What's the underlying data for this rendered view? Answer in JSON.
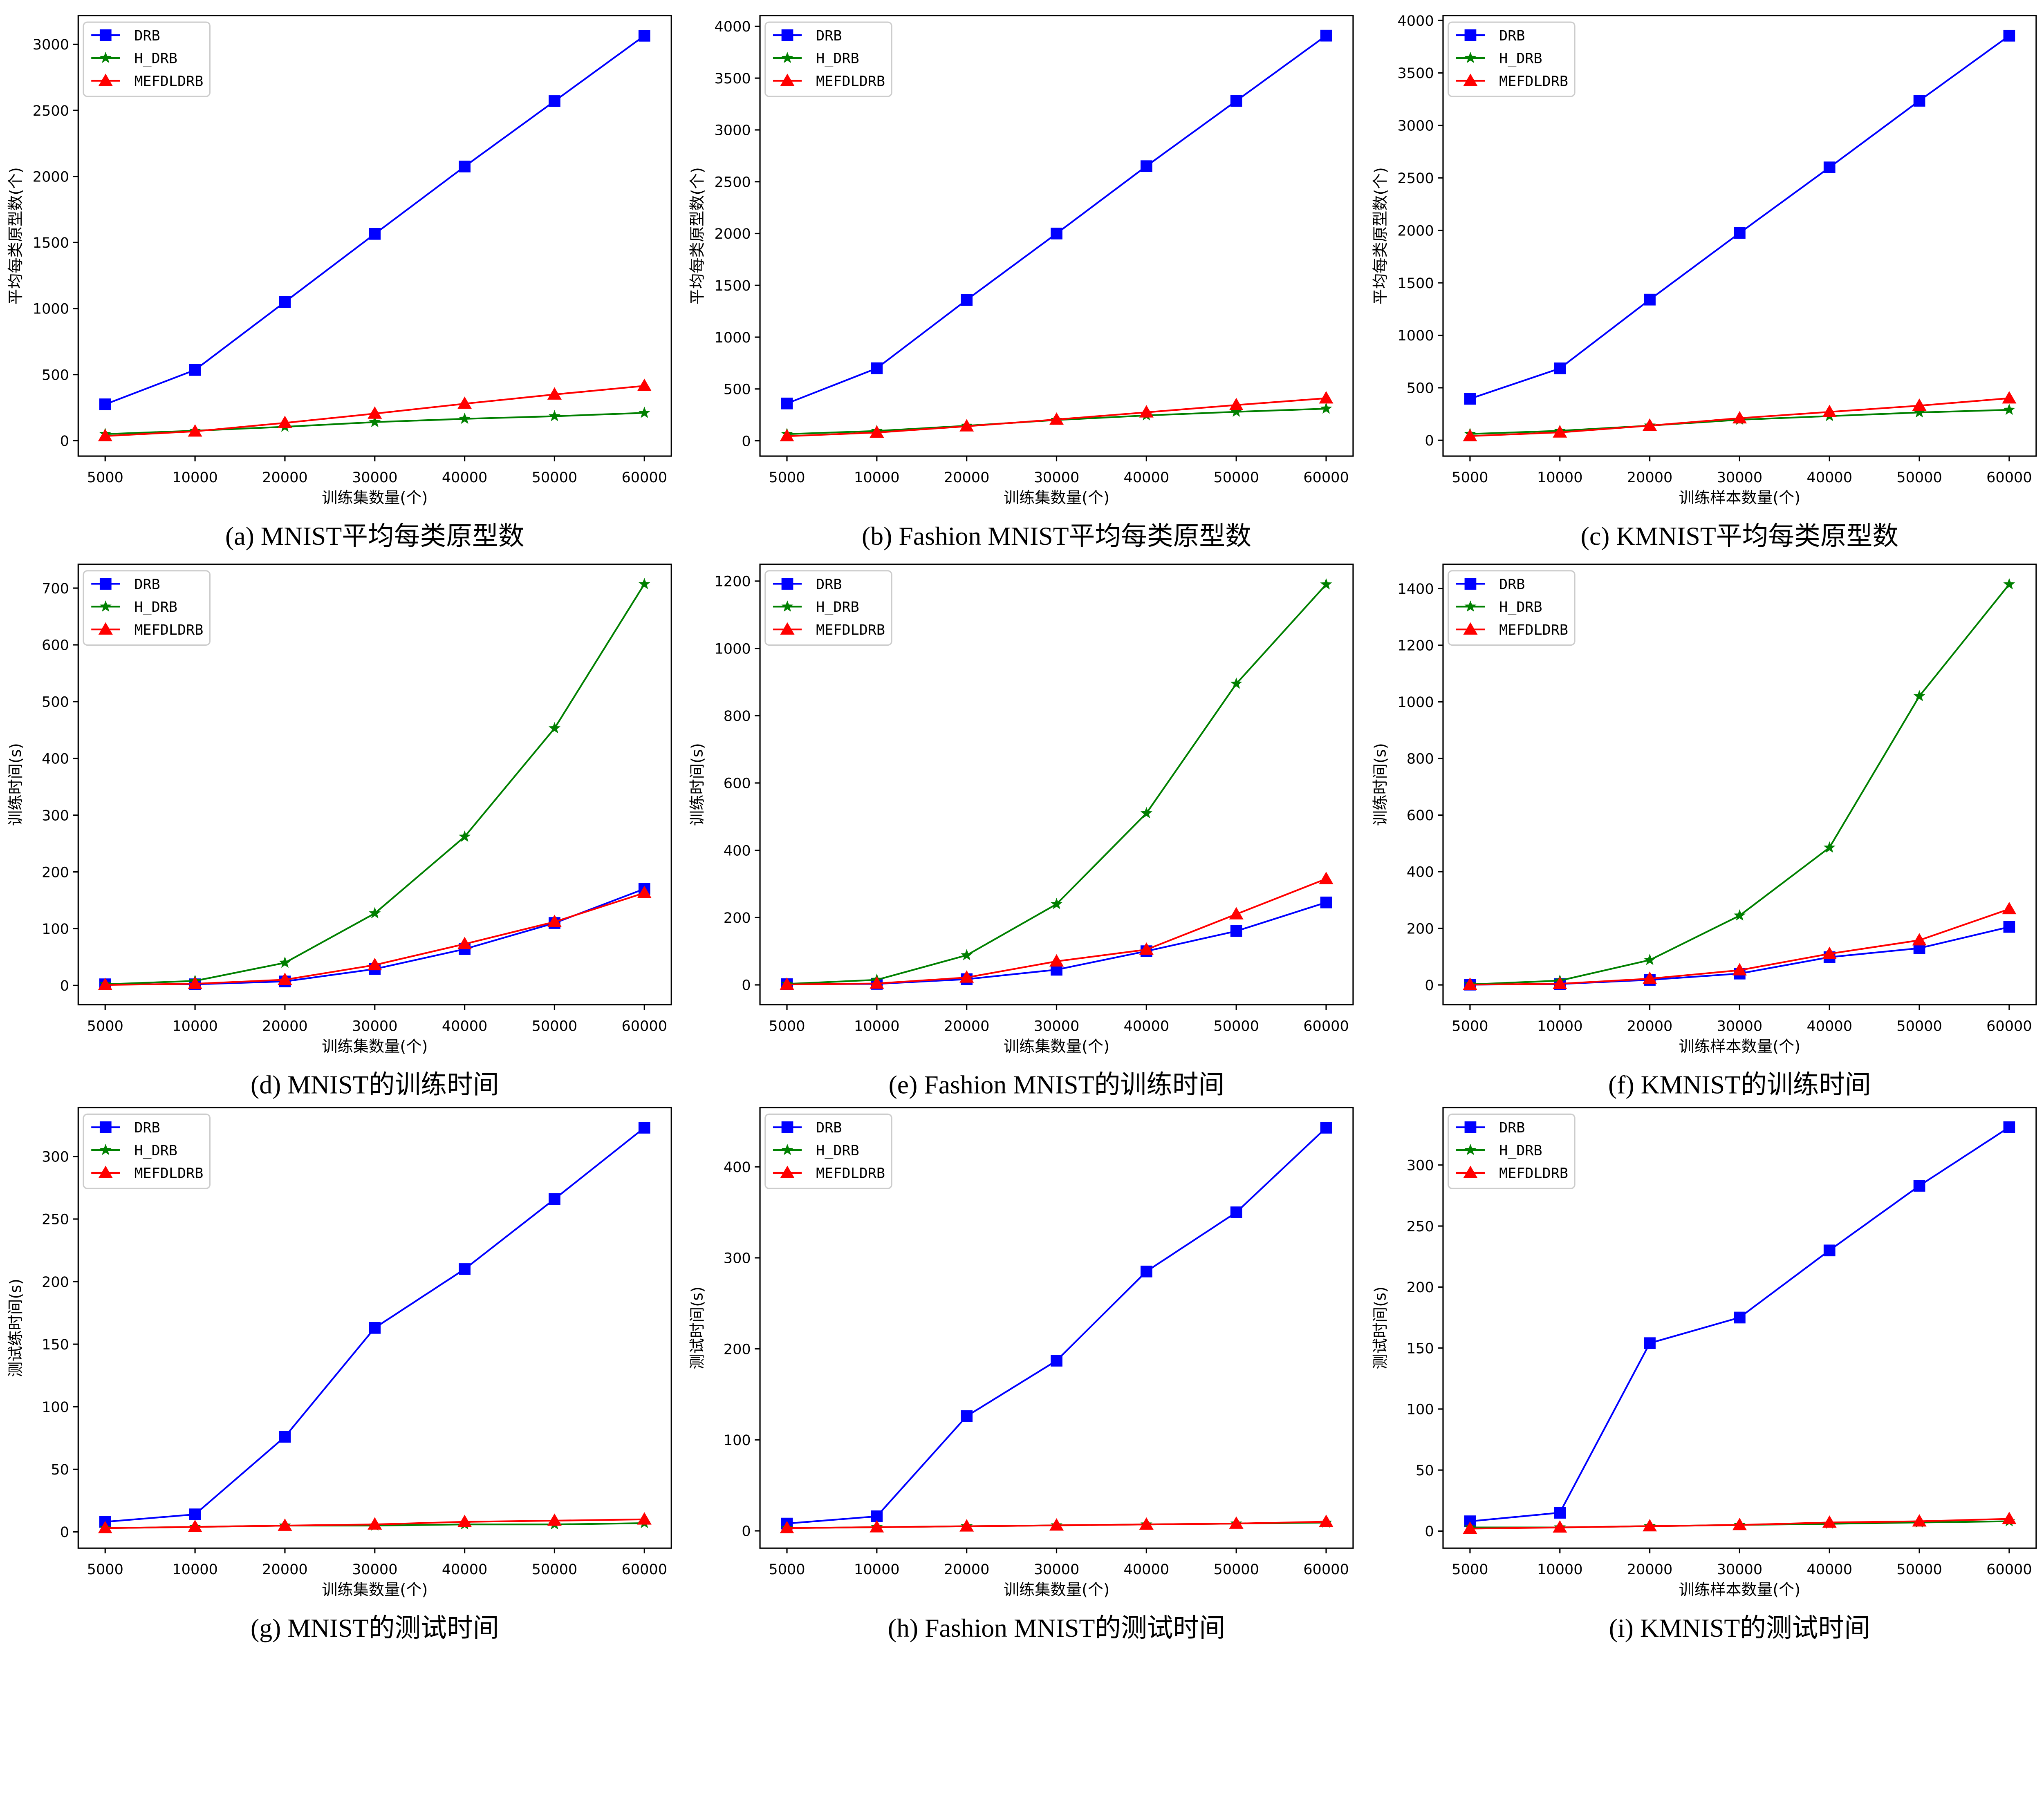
{
  "series_styles": [
    {
      "name": "DRB",
      "color": "#0000ff",
      "marker": "square"
    },
    {
      "name": "H_DRB",
      "color": "#008000",
      "marker": "star"
    },
    {
      "name": "MEFDLDRB",
      "color": "#ff0000",
      "marker": "triangle"
    }
  ],
  "chart_data": [
    {
      "type": "line",
      "caption": "(a) MNIST平均每类原型数",
      "xlabel": "训练集数量(个)",
      "ylabel": "平均每类原型数(个)",
      "categories": [
        "5000",
        "10000",
        "20000",
        "30000",
        "40000",
        "50000",
        "60000"
      ],
      "yticks": [
        0,
        500,
        1000,
        1500,
        2000,
        2500,
        3000
      ],
      "ylim": [
        -117,
        3217
      ],
      "legend": "top-left",
      "grid": false,
      "series": [
        {
          "name": "DRB",
          "values": [
            275,
            535,
            1050,
            1565,
            2075,
            2570,
            3065
          ]
        },
        {
          "name": "H_DRB",
          "values": [
            50,
            75,
            105,
            140,
            165,
            185,
            210
          ]
        },
        {
          "name": "MEFDLDRB",
          "values": [
            35,
            70,
            135,
            205,
            280,
            350,
            415
          ]
        }
      ]
    },
    {
      "type": "line",
      "caption": "(b) Fashion MNIST平均每类原型数",
      "xlabel": "训练集数量(个)",
      "ylabel": "平均每类原型数(个)",
      "categories": [
        "5000",
        "10000",
        "20000",
        "30000",
        "40000",
        "50000",
        "60000"
      ],
      "yticks": [
        0,
        500,
        1000,
        1500,
        2000,
        2500,
        3000,
        3500,
        4000
      ],
      "ylim": [
        -148,
        4103
      ],
      "legend": "top-left",
      "grid": false,
      "series": [
        {
          "name": "DRB",
          "values": [
            360,
            700,
            1360,
            2000,
            2650,
            3280,
            3910
          ]
        },
        {
          "name": "H_DRB",
          "values": [
            65,
            95,
            145,
            200,
            245,
            280,
            310
          ]
        },
        {
          "name": "MEFDLDRB",
          "values": [
            45,
            80,
            140,
            205,
            275,
            345,
            410
          ]
        }
      ]
    },
    {
      "type": "line",
      "caption": "(c) KMNIST平均每类原型数",
      "xlabel": "训练样本数量(个)",
      "ylabel": "平均每类原型数(个)",
      "categories": [
        "5000",
        "10000",
        "20000",
        "30000",
        "40000",
        "50000",
        "60000"
      ],
      "yticks": [
        0,
        500,
        1000,
        1500,
        2000,
        2500,
        3000,
        3500,
        4000
      ],
      "ylim": [
        -151,
        4046
      ],
      "legend": "top-left",
      "grid": false,
      "series": [
        {
          "name": "DRB",
          "values": [
            395,
            685,
            1340,
            1975,
            2600,
            3235,
            3855
          ]
        },
        {
          "name": "H_DRB",
          "values": [
            60,
            90,
            140,
            195,
            230,
            265,
            290
          ]
        },
        {
          "name": "MEFDLDRB",
          "values": [
            40,
            75,
            140,
            210,
            270,
            330,
            400
          ]
        }
      ]
    },
    {
      "type": "line",
      "caption": "(d) MNIST的训练时间",
      "xlabel": "训练集数量(个)",
      "ylabel": "训练时间(s)",
      "categories": [
        "5000",
        "10000",
        "20000",
        "30000",
        "40000",
        "50000",
        "60000"
      ],
      "yticks": [
        0,
        100,
        200,
        300,
        400,
        500,
        600,
        700
      ],
      "ylim": [
        -34,
        742
      ],
      "legend": "top-left",
      "grid": false,
      "series": [
        {
          "name": "DRB",
          "values": [
            2,
            2,
            7,
            29,
            64,
            110,
            170
          ]
        },
        {
          "name": "H_DRB",
          "values": [
            2,
            8,
            40,
            127,
            262,
            453,
            707
          ]
        },
        {
          "name": "MEFDLDRB",
          "values": [
            1,
            3,
            10,
            36,
            73,
            112,
            163
          ]
        }
      ]
    },
    {
      "type": "line",
      "caption": "(e) Fashion MNIST的训练时间",
      "xlabel": "训练集数量(个)",
      "ylabel": "训练时间(s)",
      "categories": [
        "5000",
        "10000",
        "20000",
        "30000",
        "40000",
        "50000",
        "60000"
      ],
      "yticks": [
        0,
        200,
        400,
        600,
        800,
        1000,
        1200
      ],
      "ylim": [
        -59,
        1250
      ],
      "legend": "top-left",
      "grid": false,
      "series": [
        {
          "name": "DRB",
          "values": [
            2,
            3,
            17,
            45,
            100,
            160,
            245
          ]
        },
        {
          "name": "H_DRB",
          "values": [
            3,
            15,
            88,
            240,
            510,
            895,
            1190
          ]
        },
        {
          "name": "MEFDLDRB",
          "values": [
            1,
            4,
            22,
            70,
            105,
            210,
            315
          ]
        }
      ]
    },
    {
      "type": "line",
      "caption": "(f) KMNIST的训练时间",
      "xlabel": "训练样本数量(个)",
      "ylabel": "训练时间(s)",
      "categories": [
        "5000",
        "10000",
        "20000",
        "30000",
        "40000",
        "50000",
        "60000"
      ],
      "yticks": [
        0,
        200,
        400,
        600,
        800,
        1000,
        1200,
        1400
      ],
      "ylim": [
        -70,
        1486
      ],
      "legend": "top-left",
      "grid": false,
      "series": [
        {
          "name": "DRB",
          "values": [
            1,
            3,
            18,
            40,
            98,
            130,
            205
          ]
        },
        {
          "name": "H_DRB",
          "values": [
            2,
            15,
            88,
            245,
            485,
            1020,
            1415
          ]
        },
        {
          "name": "MEFDLDRB",
          "values": [
            1,
            4,
            22,
            52,
            110,
            158,
            268
          ]
        }
      ]
    },
    {
      "type": "line",
      "caption": "(g) MNIST的测试时间",
      "xlabel": "训练集数量(个)",
      "ylabel": "测试练时间(s)",
      "categories": [
        "5000",
        "10000",
        "20000",
        "30000",
        "40000",
        "50000",
        "60000"
      ],
      "yticks": [
        0,
        50,
        100,
        150,
        200,
        250,
        300
      ],
      "ylim": [
        -13,
        339
      ],
      "legend": "top-left",
      "grid": false,
      "series": [
        {
          "name": "DRB",
          "values": [
            8,
            14,
            76,
            163,
            210,
            266,
            323
          ]
        },
        {
          "name": "H_DRB",
          "values": [
            3,
            4,
            5,
            5,
            6,
            6,
            7
          ]
        },
        {
          "name": "MEFDLDRB",
          "values": [
            3,
            4,
            5,
            6,
            8,
            9,
            10
          ]
        }
      ]
    },
    {
      "type": "line",
      "caption": "(h) Fashion MNIST的测试时间",
      "xlabel": "训练集数量(个)",
      "ylabel": "测试时间(s)",
      "categories": [
        "5000",
        "10000",
        "20000",
        "30000",
        "40000",
        "50000",
        "60000"
      ],
      "yticks": [
        0,
        100,
        200,
        300,
        400
      ],
      "ylim": [
        -19,
        465
      ],
      "legend": "top-left",
      "grid": false,
      "series": [
        {
          "name": "DRB",
          "values": [
            8,
            16,
            126,
            187,
            285,
            350,
            443
          ]
        },
        {
          "name": "H_DRB",
          "values": [
            3,
            4,
            5,
            6,
            7,
            8,
            9
          ]
        },
        {
          "name": "MEFDLDRB",
          "values": [
            3,
            4,
            5,
            6,
            7,
            8,
            10
          ]
        }
      ]
    },
    {
      "type": "line",
      "caption": "(i) KMNIST的测试时间",
      "xlabel": "训练样本数量(个)",
      "ylabel": "测试时间(s)",
      "categories": [
        "5000",
        "10000",
        "20000",
        "30000",
        "40000",
        "50000",
        "60000"
      ],
      "yticks": [
        0,
        50,
        100,
        150,
        200,
        250,
        300
      ],
      "ylim": [
        -14,
        347
      ],
      "legend": "top-left",
      "grid": false,
      "series": [
        {
          "name": "DRB",
          "values": [
            8,
            15,
            154,
            175,
            230,
            283,
            331
          ]
        },
        {
          "name": "H_DRB",
          "values": [
            3,
            3,
            4,
            5,
            6,
            7,
            8
          ]
        },
        {
          "name": "MEFDLDRB",
          "values": [
            2,
            3,
            4,
            5,
            7,
            8,
            10
          ]
        }
      ]
    }
  ]
}
